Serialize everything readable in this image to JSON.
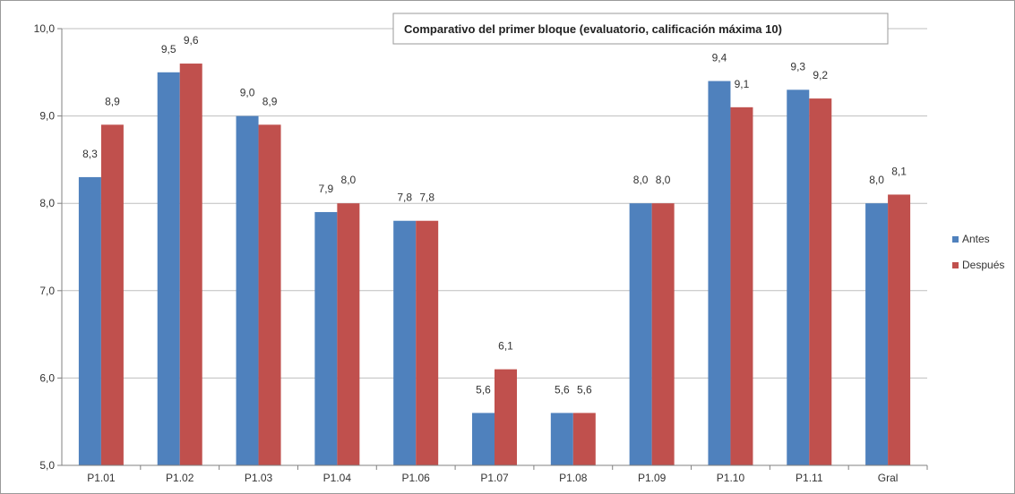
{
  "chart_data": {
    "type": "bar",
    "title": "Comparativo del primer bloque (evaluatorio, calificación máxima 10)",
    "categories": [
      "P1.01",
      "P1.02",
      "P1.03",
      "P1.04",
      "P1.06",
      "P1.07",
      "P1.08",
      "P1.09",
      "P1.10",
      "P1.11",
      "Gral"
    ],
    "series": [
      {
        "name": "Antes",
        "color": "#4f81bd",
        "values": [
          8.3,
          9.5,
          9.0,
          7.9,
          7.8,
          5.6,
          5.6,
          8.0,
          9.4,
          9.3,
          8.0
        ],
        "labels": [
          "8,3",
          "9,5",
          "9,0",
          "7,9",
          "7,8",
          "5,6",
          "5,6",
          "8,0",
          "9,4",
          "9,3",
          "8,0"
        ]
      },
      {
        "name": "Después",
        "color": "#c0504d",
        "values": [
          8.9,
          9.6,
          8.9,
          8.0,
          7.8,
          6.1,
          5.6,
          8.0,
          9.1,
          9.2,
          8.1
        ],
        "labels": [
          "8,9",
          "9,6",
          "8,9",
          "8,0",
          "7,8",
          "6,1",
          "5,6",
          "8,0",
          "9,1",
          "9,2",
          "8,1"
        ]
      }
    ],
    "ylim": [
      5.0,
      10.0
    ],
    "yticks": [
      5.0,
      6.0,
      7.0,
      8.0,
      9.0,
      10.0
    ],
    "ytick_labels": [
      "5,0",
      "6,0",
      "7,0",
      "8,0",
      "9,0",
      "10,0"
    ],
    "xlabel": "",
    "ylabel": "",
    "grid": true,
    "legend_position": "right"
  }
}
